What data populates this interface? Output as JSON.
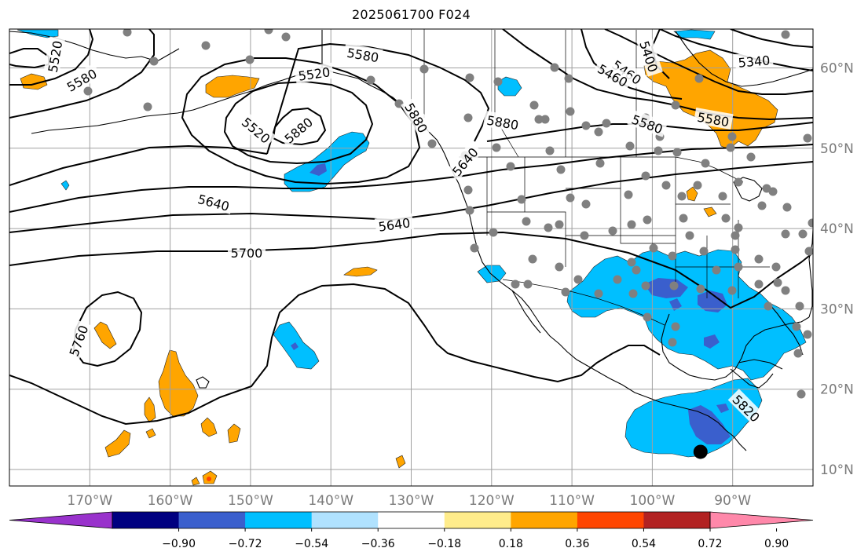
{
  "title": "2025061700 F024",
  "map": {
    "projection": "equirectangular",
    "lon_range": [
      -180,
      -80
    ],
    "lat_range": [
      8,
      65
    ],
    "lon_ticks": [
      {
        "lon": -170,
        "label": "170°W"
      },
      {
        "lon": -160,
        "label": "160°W"
      },
      {
        "lon": -150,
        "label": "150°W"
      },
      {
        "lon": -140,
        "label": "140°W"
      },
      {
        "lon": -130,
        "label": "130°W"
      },
      {
        "lon": -120,
        "label": "120°W"
      },
      {
        "lon": -110,
        "label": "110°W"
      },
      {
        "lon": -100,
        "label": "100°W"
      },
      {
        "lon": -90,
        "label": "90°W"
      }
    ],
    "lat_ticks": [
      {
        "lat": 60,
        "label": "60°N"
      },
      {
        "lat": 50,
        "label": "50°N"
      },
      {
        "lat": 40,
        "label": "40°N"
      },
      {
        "lat": 30,
        "label": "30°N"
      },
      {
        "lat": 20,
        "label": "20°N"
      },
      {
        "lat": 10,
        "label": "10°N"
      }
    ],
    "contour_labels": [
      "5340",
      "5400",
      "5460",
      "5460",
      "5520",
      "5520",
      "5520",
      "5580",
      "5580",
      "5580",
      "5580",
      "5640",
      "5640",
      "5640",
      "5700",
      "5760",
      "5820",
      "5880",
      "5880",
      "5880"
    ],
    "marker": {
      "lon": -94,
      "lat": 12.2,
      "color": "#000000"
    },
    "station_color": "#808080",
    "coast_color": "#000000",
    "grid_color": "#a0a0a0"
  },
  "colorbar": {
    "colors": [
      "#9932cc",
      "#000080",
      "#3a5fcd",
      "#00bfff",
      "#b0e2ff",
      "#ffffff",
      "#ffec8b",
      "#ffa500",
      "#ff4500",
      "#b22222",
      "#ff88aa"
    ],
    "labels": [
      "−0.90",
      "−0.72",
      "−0.54",
      "−0.36",
      "−0.18",
      "0.18",
      "0.36",
      "0.54",
      "0.72",
      "0.90"
    ]
  }
}
